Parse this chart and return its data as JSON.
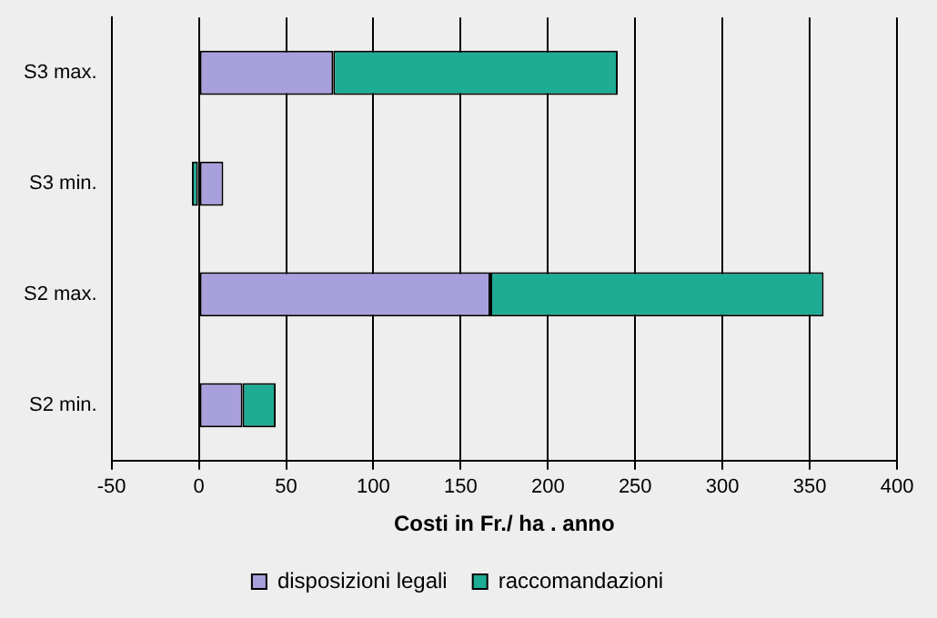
{
  "chart_data": {
    "type": "bar",
    "orientation": "horizontal",
    "stacked": true,
    "xlabel": "Costi in Fr./ ha . anno",
    "categories": [
      "S3 max.",
      "S3 min.",
      "S2 max.",
      "S2 min."
    ],
    "series": [
      {
        "name": "disposizioni legali",
        "color": "#a8a0dc",
        "values": [
          77,
          14,
          167,
          25
        ]
      },
      {
        "name": "raccomandazioni",
        "color": "#1eac94",
        "values": [
          163,
          -4,
          191,
          19
        ]
      }
    ],
    "xlim": [
      -50,
      400
    ],
    "xticks": [
      -50,
      0,
      50,
      100,
      150,
      200,
      250,
      300,
      350,
      400
    ],
    "grid": "x",
    "legend": "bottom"
  }
}
